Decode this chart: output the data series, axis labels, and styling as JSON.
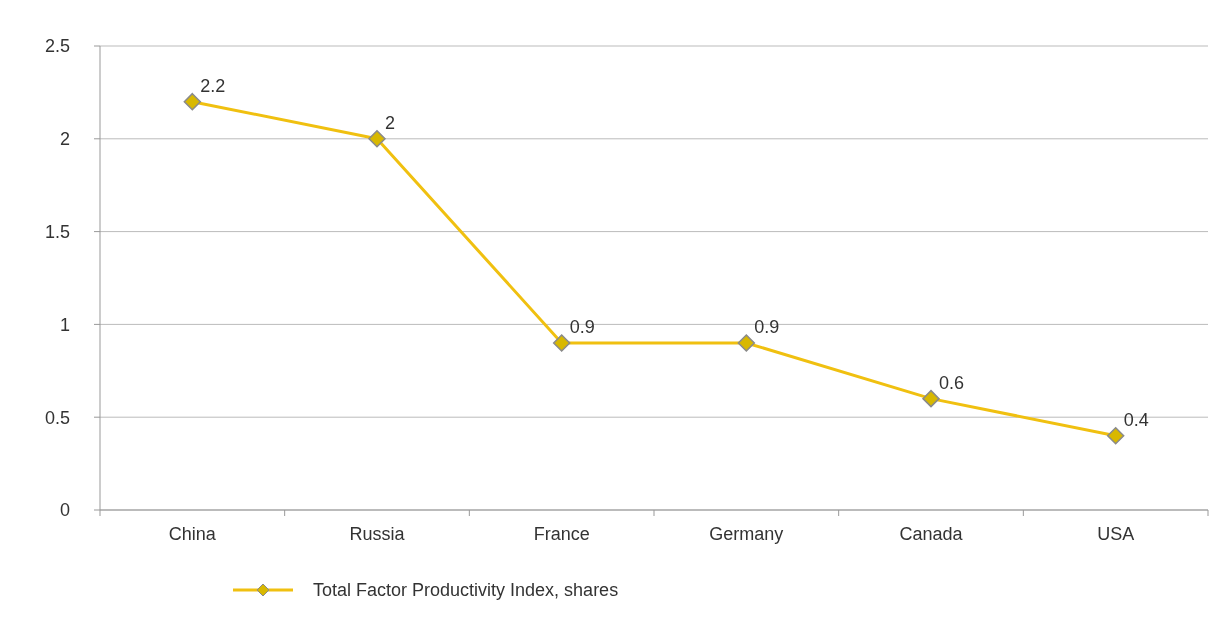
{
  "chart_data": {
    "type": "line",
    "categories": [
      "China",
      "Russia",
      "France",
      "Germany",
      "Canada",
      "USA"
    ],
    "series": [
      {
        "name": "Total Factor Productivity Index, shares",
        "color": "#f0c010",
        "values": [
          2.2,
          2,
          0.9,
          0.9,
          0.6,
          0.4
        ]
      }
    ],
    "ylim": [
      0,
      2.5
    ],
    "yticks": [
      0,
      0.5,
      1,
      1.5,
      2,
      2.5
    ],
    "grid": "y",
    "legend": "bottom",
    "marker": "diamond",
    "line_style": "solid",
    "data_labels": true
  }
}
